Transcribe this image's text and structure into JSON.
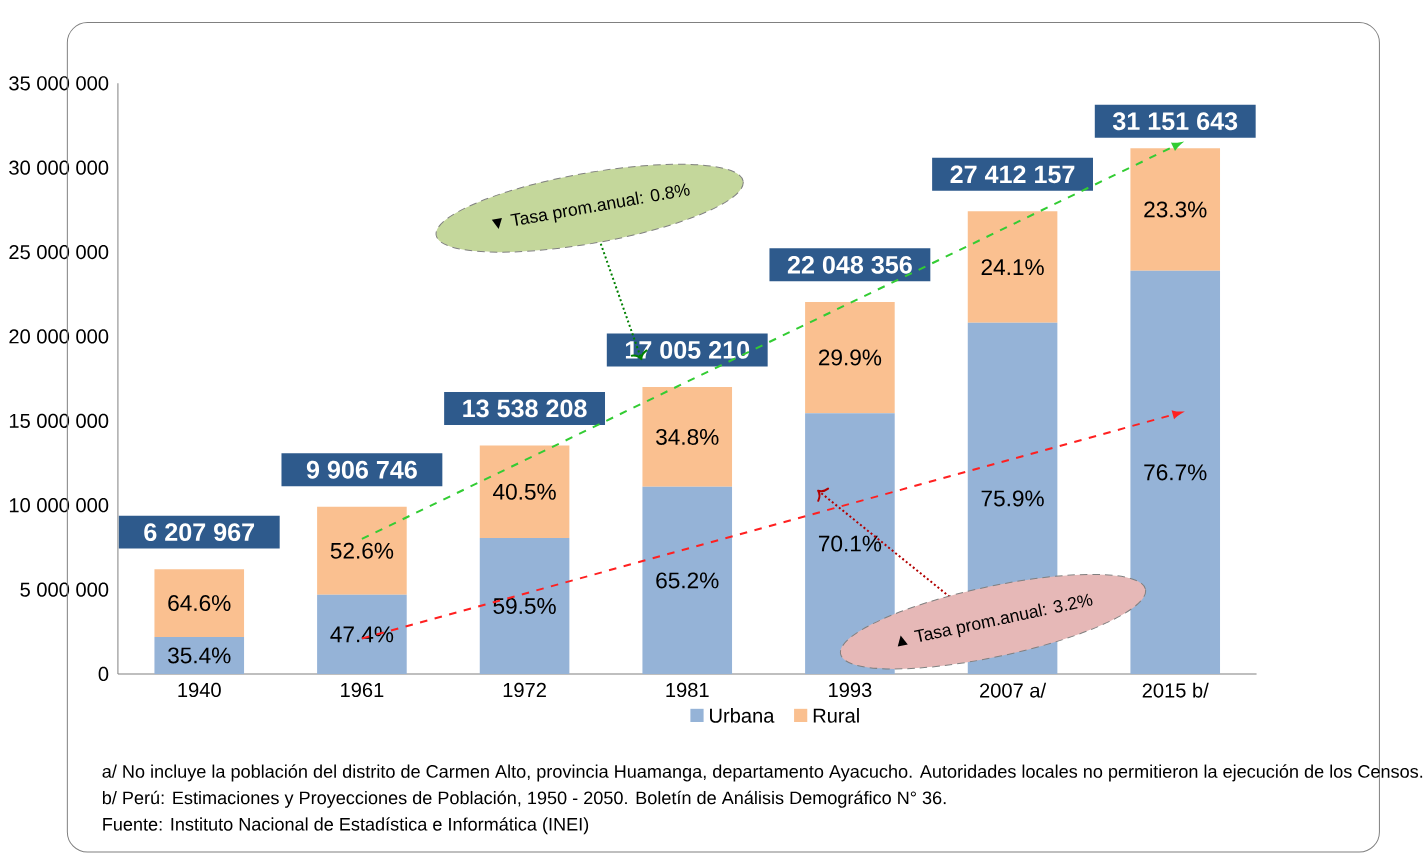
{
  "chart_data": {
    "type": "bar",
    "stacked": true,
    "categories": [
      "1940",
      "1961",
      "1972",
      "1981",
      "1993",
      "2007 a/",
      "2015 b/"
    ],
    "series": [
      {
        "name": "Urbana",
        "color": "#95b3d7",
        "values": [
          2197620,
          4695798,
          8055234,
          11087397,
          15455898,
          20805827,
          23893310
        ]
      },
      {
        "name": "Rural",
        "color": "#fac090",
        "values": [
          4010347,
          5210948,
          5482974,
          5917813,
          6592458,
          6606330,
          7258333
        ]
      },
      {
        "type": "line",
        "color": "#33cc33",
        "line_style": "dashed",
        "values": [
          null,
          8000000,
          null,
          null,
          null,
          null,
          31300000
        ]
      },
      {
        "type": "line",
        "color": "#ff2020",
        "line_style": "dashed",
        "values": [
          null,
          2100000,
          null,
          null,
          null,
          null,
          15400000
        ]
      }
    ],
    "totals": [
      "6 207 967",
      "9 906 746",
      "13 538 208",
      "17 005 210",
      "22 048 356",
      "27 412 157",
      "31 151 643"
    ],
    "ylim": [
      0,
      35000000
    ],
    "yticks": [
      {
        "value": 0,
        "label": "0"
      },
      {
        "value": 5000000,
        "label": "5 000 000"
      },
      {
        "value": 10000000,
        "label": "10 000 000"
      },
      {
        "value": 15000000,
        "label": "15 000 000"
      },
      {
        "value": 20000000,
        "label": "20 000 000"
      },
      {
        "value": 25000000,
        "label": "25 000 000"
      },
      {
        "value": 30000000,
        "label": "30 000 000"
      },
      {
        "value": 35000000,
        "label": "35 000 000"
      }
    ],
    "legend": "bottom",
    "annotations": [
      "▼ Tasa prom.anual: 0.8%",
      "▲ Tasa prom.anual: 3.2%",
      "35.4%",
      "47.4%",
      "59.5%",
      "65.2%",
      "70.1%",
      "75.9%",
      "76.7%",
      "64.6%",
      "52.6%",
      "40.5%",
      "34.8%",
      "29.9%",
      "24.1%",
      "23.3%",
      "a/ No incluye la población del distrito de Carmen Alto, provincia Huamanga, departamento Ayacucho. Autoridades locales no permitieron la ejecución de los Censos.",
      "b/ Perú: Estimaciones y Proyecciones de Población, 1950 - 2050. Boletín de Análisis Demográfico N° 36.",
      "Fuente: Instituto Nacional de Estadística e Informática (INEI)"
    ]
  }
}
